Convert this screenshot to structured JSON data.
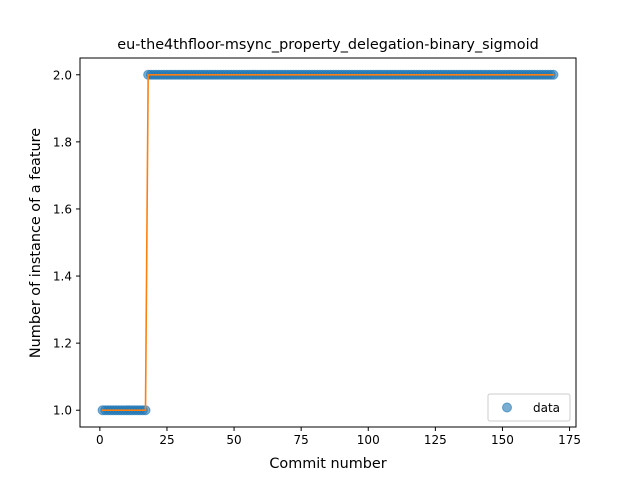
{
  "chart_data": {
    "type": "scatter",
    "title": "eu-the4thfloor-msync_property_delegation-binary_sigmoid",
    "xlabel": "Commit number",
    "ylabel": "Number of instance of a feature",
    "xlim": [
      -7.4,
      177.4
    ],
    "ylim": [
      0.95,
      2.05
    ],
    "xticks": [
      0,
      25,
      50,
      75,
      100,
      125,
      150,
      175
    ],
    "xtick_labels": [
      "0",
      "25",
      "50",
      "75",
      "100",
      "125",
      "150",
      "175"
    ],
    "yticks": [
      1.0,
      1.2,
      1.4,
      1.6,
      1.8,
      2.0
    ],
    "ytick_labels": [
      "1.0",
      "1.2",
      "1.4",
      "1.6",
      "1.8",
      "2.0"
    ],
    "grid": false,
    "legend": {
      "position": "lower-right",
      "entries": [
        "data"
      ]
    },
    "series": [
      {
        "name": "data",
        "kind": "scatter",
        "color": "#1f77b4",
        "alpha": 0.6,
        "segments": [
          {
            "x_start": 1,
            "x_end": 17,
            "y": 1
          },
          {
            "x_start": 18,
            "x_end": 169,
            "y": 2
          }
        ]
      },
      {
        "kind": "line",
        "color": "#ff7f0e",
        "x": [
          1,
          17,
          18,
          169
        ],
        "y": [
          1,
          1,
          2,
          2
        ]
      }
    ]
  }
}
